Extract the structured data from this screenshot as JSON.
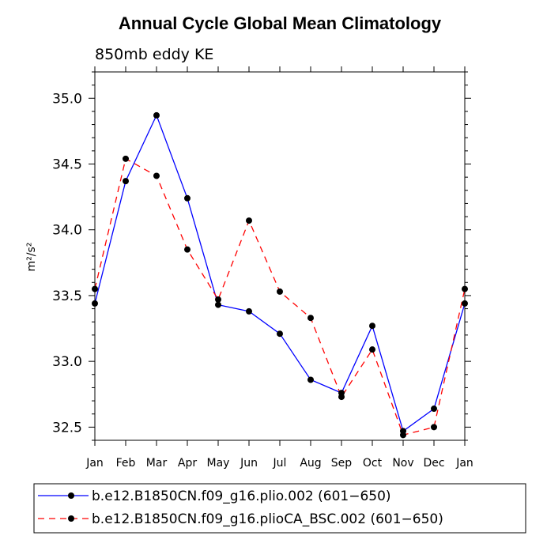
{
  "chart_data": {
    "type": "line",
    "title": "Annual Cycle Global Mean Climatology",
    "subtitle": "850mb eddy KE",
    "ylabel": "m²/s²",
    "xlabel": "",
    "categories": [
      "Jan",
      "Feb",
      "Mar",
      "Apr",
      "May",
      "Jun",
      "Jul",
      "Aug",
      "Sep",
      "Oct",
      "Nov",
      "Dec",
      "Jan"
    ],
    "ylim": [
      32.4,
      35.2
    ],
    "yticks": [
      32.5,
      33.0,
      33.5,
      34.0,
      34.5,
      35.0
    ],
    "ytick_labels": [
      "32.5",
      "33.0",
      "33.5",
      "34.0",
      "34.5",
      "35.0"
    ],
    "series": [
      {
        "name": "b.e12.B1850CN.f09_g16.plio.002 (601−650)",
        "color": "#0000ff",
        "dash": "solid",
        "values": [
          33.44,
          34.37,
          34.87,
          34.24,
          33.43,
          33.38,
          33.21,
          32.86,
          32.76,
          33.27,
          32.47,
          32.64,
          33.44
        ]
      },
      {
        "name": "b.e12.B1850CN.f09_g16.plioCA_BSC.002 (601−650)",
        "color": "#ff0000",
        "dash": "dashed",
        "values": [
          33.55,
          34.54,
          34.41,
          33.85,
          33.47,
          34.07,
          33.53,
          33.33,
          32.73,
          33.09,
          32.44,
          32.5,
          33.55
        ]
      }
    ]
  }
}
